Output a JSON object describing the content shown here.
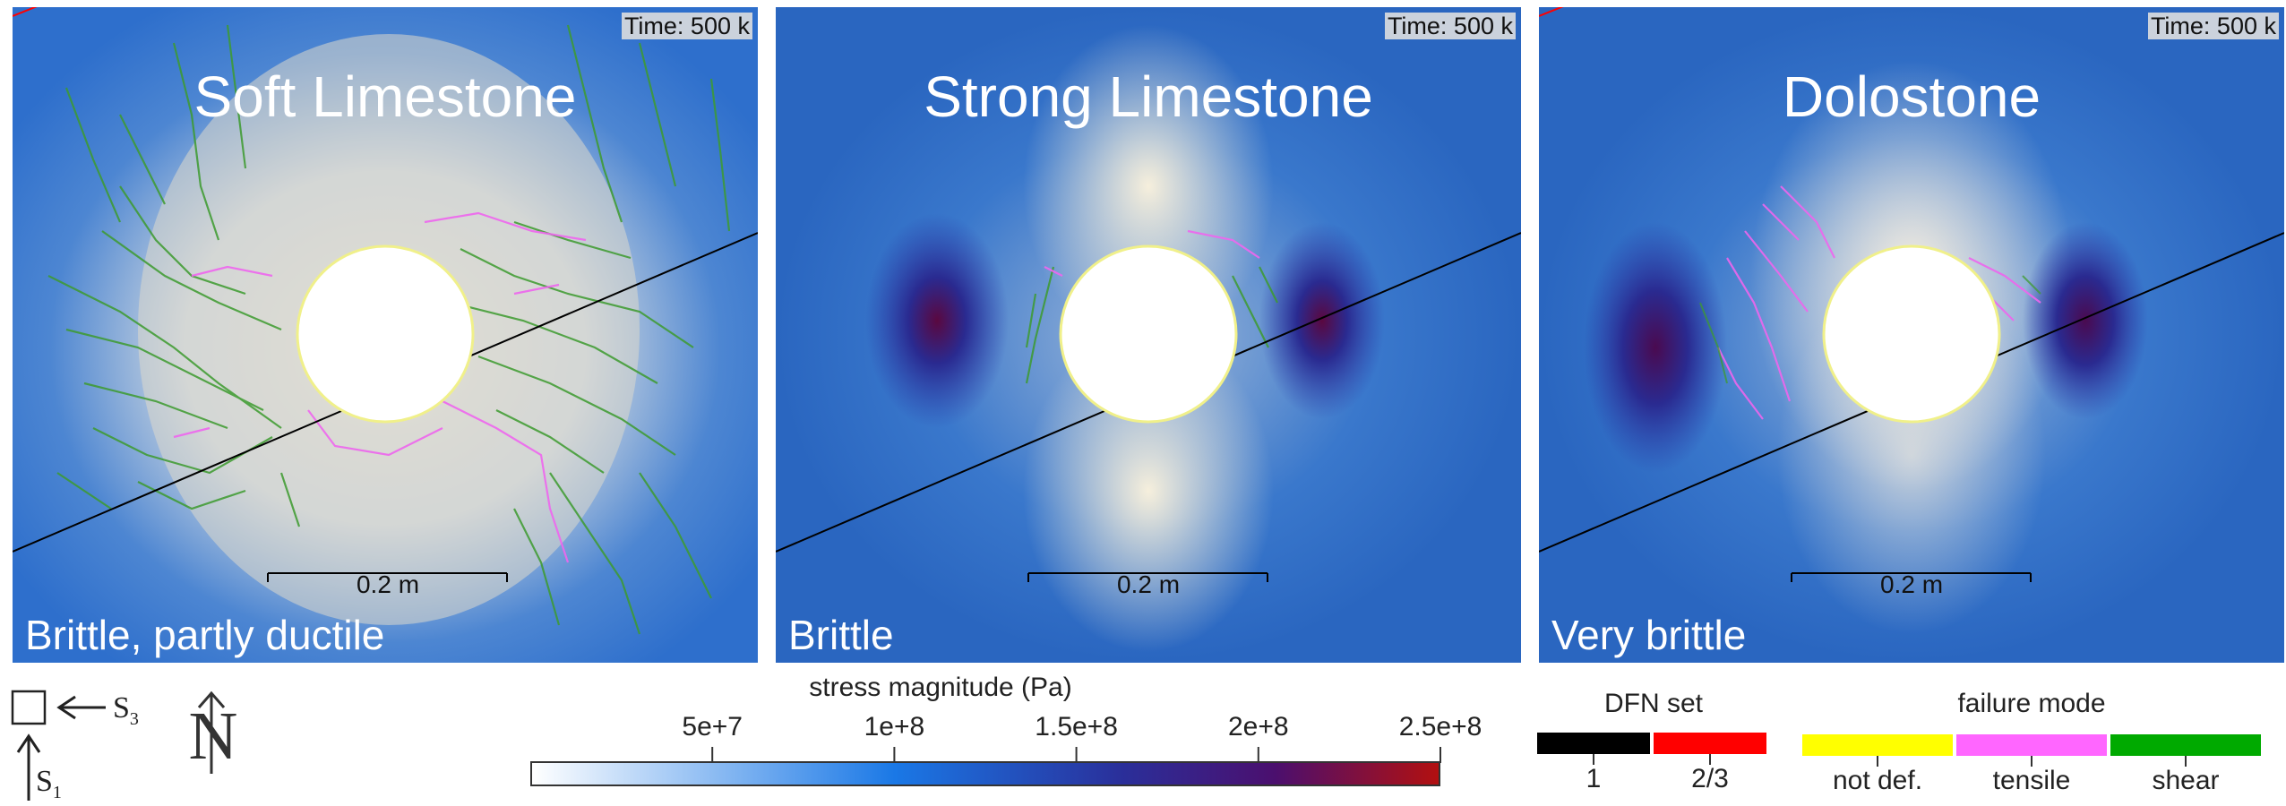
{
  "panels": [
    {
      "title": "Soft Limestone",
      "time": "Time: 500 k",
      "scale": "0.2 m",
      "behavior": "Brittle, partly ductile"
    },
    {
      "title": "Strong Limestone",
      "time": "Time: 500 k",
      "scale": "0.2 m",
      "behavior": "Brittle"
    },
    {
      "title": "Dolostone",
      "time": "Time: 500 k",
      "scale": "0.2 m",
      "behavior": "Very brittle"
    }
  ],
  "stress_key": {
    "s3": "S",
    "s3_sub": "3",
    "s1": "S",
    "s1_sub": "1"
  },
  "north": "N",
  "colorbar": {
    "title": "stress magnitude (Pa)",
    "ticks": [
      "5e+7",
      "1e+8",
      "1.5e+8",
      "2e+8",
      "2.5e+8"
    ],
    "colors": [
      "#ffffff",
      "#1a78e6",
      "#2a2f9a",
      "#4b0f6e",
      "#b21010"
    ]
  },
  "dfn": {
    "title": "DFN set",
    "labels": [
      "1",
      "2/3"
    ],
    "colors": [
      "#000000",
      "#ff0000"
    ]
  },
  "failure": {
    "title": "failure mode",
    "labels": [
      "not def.",
      "tensile",
      "shear"
    ],
    "colors": [
      "#ffff00",
      "#ff66ff",
      "#00aa00"
    ]
  }
}
